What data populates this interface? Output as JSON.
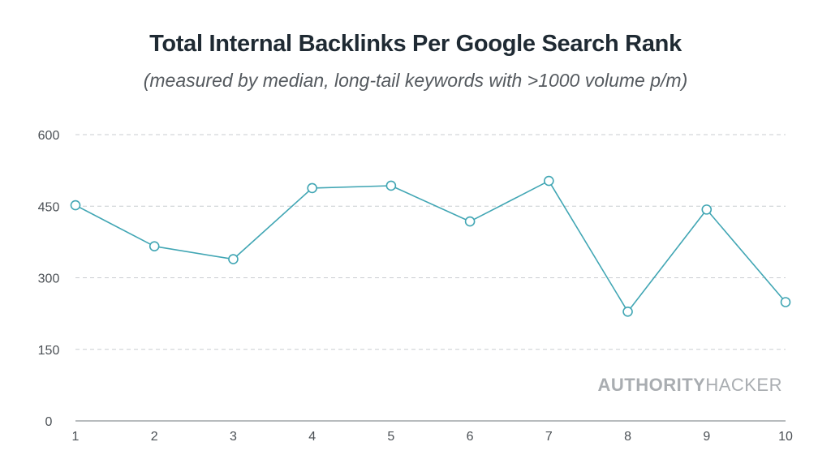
{
  "header": {
    "title": "Total Internal Backlinks Per Google Search Rank",
    "subtitle": "(measured by median, long-tail keywords with >1000 volume p/m)"
  },
  "watermark": {
    "bold": "AUTHORITY",
    "light": "HACKER"
  },
  "colors": {
    "line": "#41a6b4",
    "grid": "#c9cdd1",
    "axis": "#8e9398",
    "marker_fill": "#ffffff"
  },
  "chart_data": {
    "type": "line",
    "title": "Total Internal Backlinks Per Google Search Rank",
    "subtitle": "(measured by median, long-tail keywords with >1000 volume p/m)",
    "xlabel": "",
    "ylabel": "",
    "x": [
      1,
      2,
      3,
      4,
      5,
      6,
      7,
      8,
      9,
      10
    ],
    "series": [
      {
        "name": "Total Internal Backlinks",
        "values": [
          452,
          366,
          339,
          488,
          493,
          418,
          503,
          229,
          443,
          249
        ]
      }
    ],
    "ylim": [
      0,
      600
    ],
    "yticks": [
      0,
      150,
      300,
      450,
      600
    ],
    "xticks": [
      1,
      2,
      3,
      4,
      5,
      6,
      7,
      8,
      9,
      10
    ],
    "grid": true,
    "legend": "none"
  }
}
